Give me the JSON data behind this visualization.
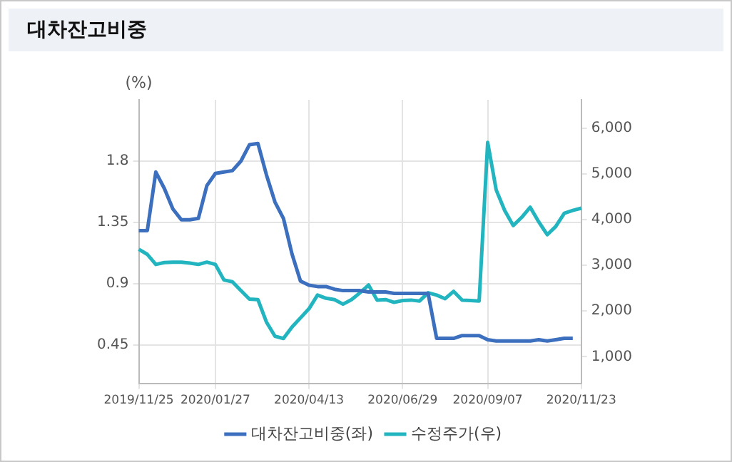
{
  "chart_data": {
    "type": "line",
    "title": "대차잔고비중",
    "ylabel": "(%)",
    "categories": [
      "2019/11/25",
      null,
      null,
      null,
      null,
      null,
      null,
      null,
      null,
      "2020/01/27",
      null,
      null,
      null,
      null,
      null,
      null,
      null,
      null,
      null,
      null,
      "2020/04/13",
      null,
      null,
      null,
      null,
      null,
      null,
      null,
      null,
      null,
      null,
      "2020/06/29",
      null,
      null,
      null,
      null,
      null,
      null,
      null,
      null,
      null,
      "2020/09/07",
      null,
      null,
      null,
      null,
      null,
      null,
      null,
      null,
      null,
      null,
      "2020/11/23"
    ],
    "series": [
      {
        "name": "대차잔고비중(좌)",
        "color": "#3c6fbe",
        "axis": "y",
        "values": [
          1.29,
          1.29,
          1.72,
          1.6,
          1.45,
          1.37,
          1.37,
          1.38,
          1.62,
          1.71,
          1.72,
          1.73,
          1.8,
          1.92,
          1.93,
          1.7,
          1.5,
          1.38,
          1.12,
          0.92,
          0.89,
          0.88,
          0.88,
          0.86,
          0.85,
          0.85,
          0.85,
          0.84,
          0.84,
          0.84,
          0.83,
          0.83,
          0.83,
          0.83,
          0.83,
          0.5,
          0.5,
          0.5,
          0.52,
          0.52,
          0.52,
          0.49,
          0.48,
          0.48,
          0.48,
          0.48,
          0.48,
          0.49,
          0.48,
          0.49,
          0.5,
          0.5,
          null
        ]
      },
      {
        "name": "수정주가(우)",
        "color": "#22b5bf",
        "axis": "y2",
        "values": [
          3350,
          3240,
          3020,
          3060,
          3070,
          3070,
          3050,
          3020,
          3070,
          3020,
          2680,
          2640,
          2450,
          2260,
          2250,
          1760,
          1450,
          1400,
          1650,
          1850,
          2050,
          2350,
          2280,
          2250,
          2150,
          2250,
          2400,
          2570,
          2240,
          2250,
          2190,
          2230,
          2240,
          2220,
          2400,
          2350,
          2270,
          2430,
          2240,
          2230,
          2220,
          5690,
          4650,
          4200,
          3870,
          4050,
          4270,
          3950,
          3670,
          3850,
          4140,
          4200,
          4250
        ]
      }
    ],
    "ylim": [
      0.17,
      2.25
    ],
    "yticks": [
      0.45,
      0.9,
      1.35,
      1.8
    ],
    "y2lim": [
      420,
      6620
    ],
    "y2ticks": [
      {
        "value": 1000,
        "label": "1,000"
      },
      {
        "value": 2000,
        "label": "2,000"
      },
      {
        "value": 3000,
        "label": "3,000"
      },
      {
        "value": 4000,
        "label": "4,000"
      },
      {
        "value": 5000,
        "label": "5,000"
      },
      {
        "value": 6000,
        "label": "6,000"
      }
    ],
    "grid": true,
    "legend": "bottom"
  }
}
